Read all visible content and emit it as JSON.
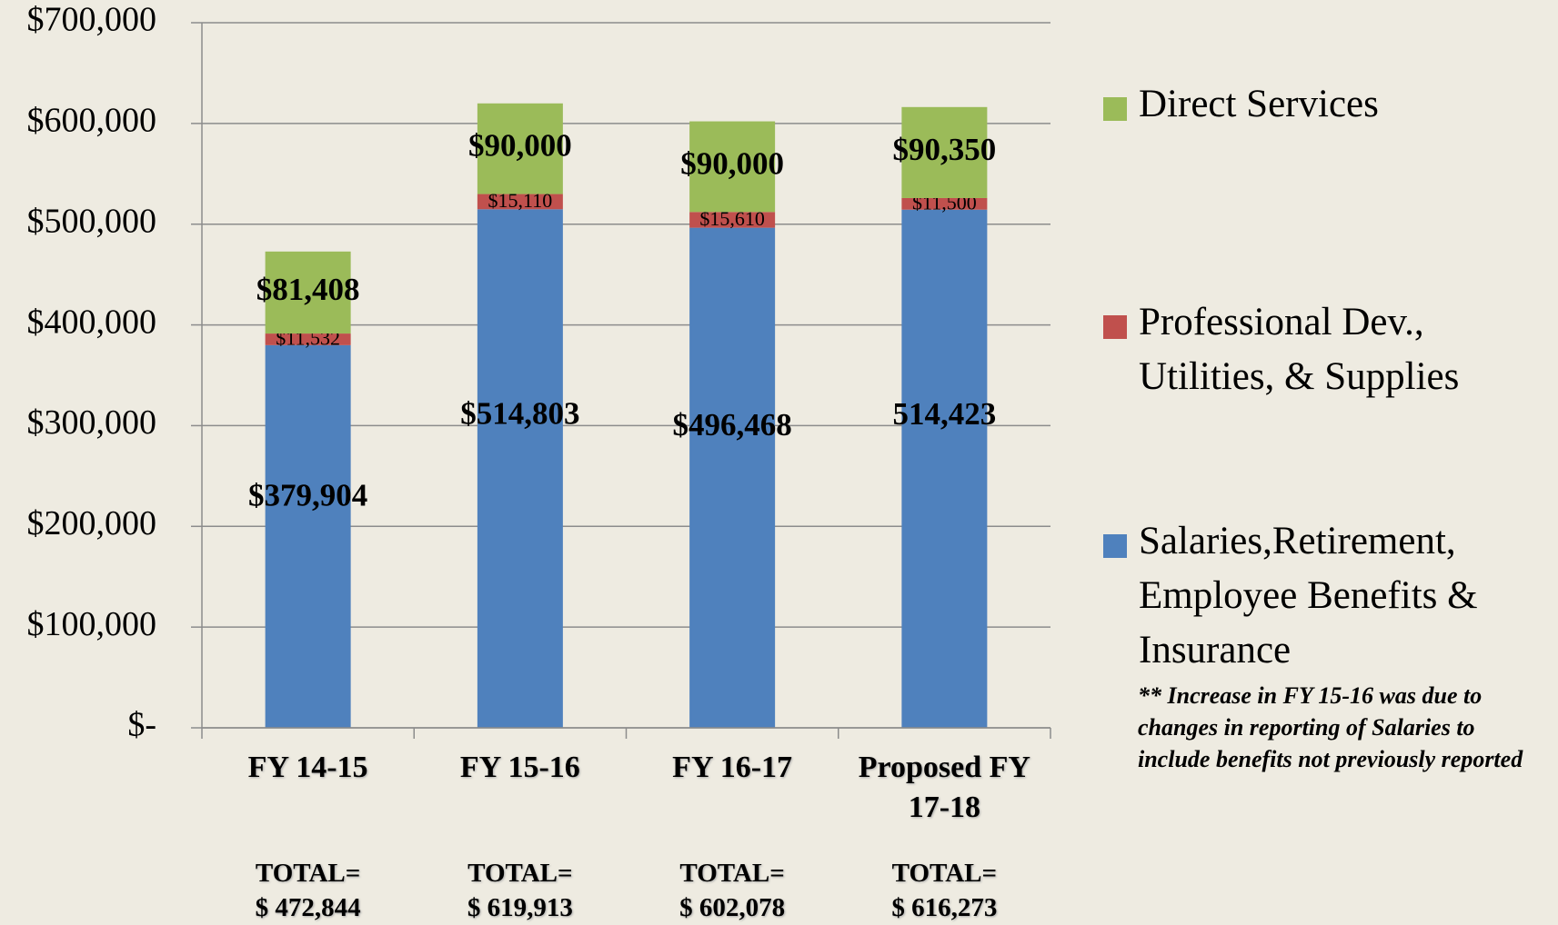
{
  "chart_data": {
    "type": "stacked_bar",
    "categories": [
      "FY 14-15",
      "FY 15-16",
      "FY 16-17",
      "Proposed FY 17-18"
    ],
    "series": [
      {
        "name": "Salaries,Retirement, Employee Benefits & Insurance",
        "color": "#4f81bd",
        "values": [
          379904,
          514803,
          496468,
          514423
        ],
        "value_labels": [
          "$379,904",
          "$514,803",
          "$496,468",
          "514,423"
        ]
      },
      {
        "name": "Professional Dev., Utilities, & Supplies",
        "color": "#c0504d",
        "values": [
          11532,
          15110,
          15610,
          11500
        ],
        "value_labels": [
          "$11,532",
          "$15,110",
          "$15,610",
          "$11,500"
        ]
      },
      {
        "name": "Direct Services",
        "color": "#9bbb59",
        "values": [
          81408,
          90000,
          90000,
          90350
        ],
        "value_labels": [
          "$81,408",
          "$90,000",
          "$90,000",
          "$90,350"
        ]
      }
    ],
    "ylim": [
      0,
      700000
    ],
    "yticks": [
      {
        "value": 0,
        "label": "$-"
      },
      {
        "value": 100000,
        "label": "$100,000"
      },
      {
        "value": 200000,
        "label": "$200,000"
      },
      {
        "value": 300000,
        "label": "$300,000"
      },
      {
        "value": 400000,
        "label": "$400,000"
      },
      {
        "value": 500000,
        "label": "$500,000"
      },
      {
        "value": 600000,
        "label": "$600,000"
      },
      {
        "value": 700000,
        "label": "$700,000"
      }
    ],
    "grid": true,
    "legend": "right",
    "totals": [
      [
        "TOTAL=",
        "$ 472,844"
      ],
      [
        "TOTAL=",
        "$ 619,913"
      ],
      [
        "TOTAL=",
        "$ 602,078"
      ],
      [
        "TOTAL=",
        "$ 616,273"
      ]
    ],
    "note": "** Increase in FY 15-16 was due to changes in reporting of Salaries to include benefits not previously reported"
  }
}
